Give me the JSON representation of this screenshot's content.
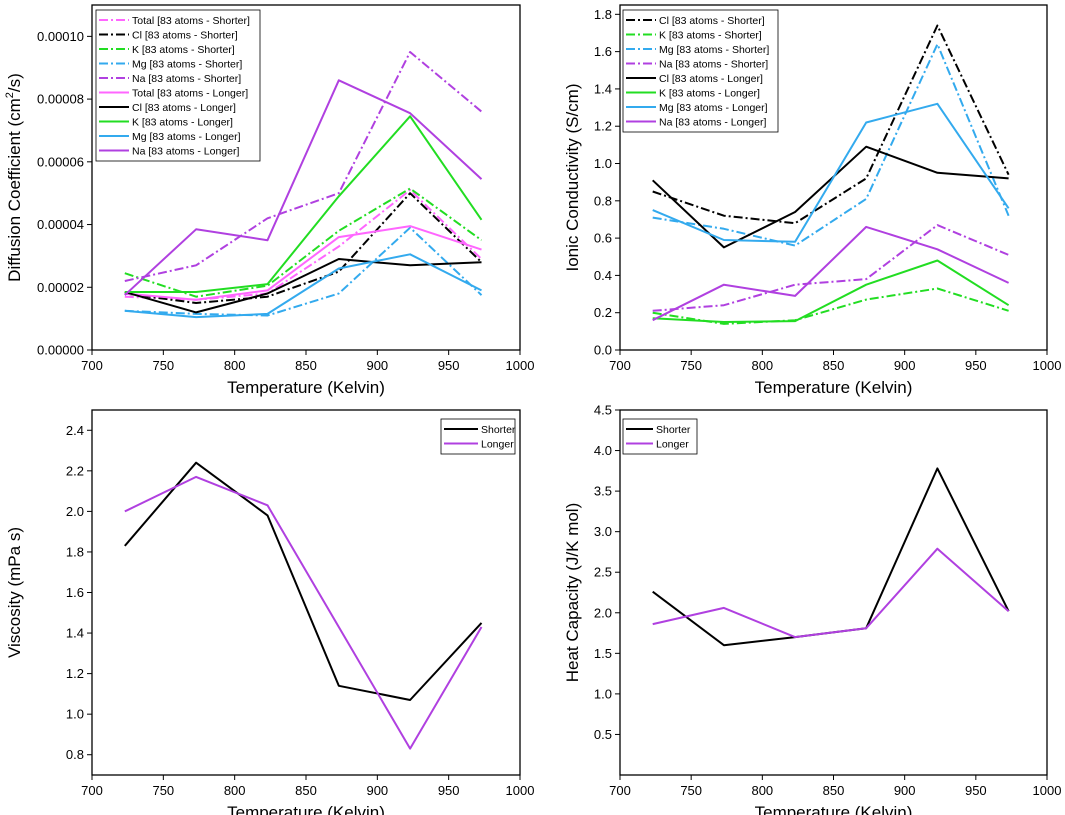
{
  "chart_data": [
    {
      "type": "line",
      "panel": "top-left",
      "xlabel": "Temperature (Kelvin)",
      "ylabel_main": "Diffusion Coefficient (cm",
      "ylabel_sup": "2",
      "ylabel_tail": "/s)",
      "xlim": [
        700,
        1000
      ],
      "ylim": [
        0,
        0.00011
      ],
      "xticks": [
        700,
        750,
        800,
        850,
        900,
        950,
        1000
      ],
      "xtick_labels": [
        "700",
        "750",
        "800",
        "850",
        "900",
        "950",
        "1000"
      ],
      "yticks": [
        0,
        2e-05,
        4e-05,
        6e-05,
        8e-05,
        0.0001
      ],
      "ytick_labels": [
        "0.00000",
        "0.00002",
        "0.00004",
        "0.00006",
        "0.00008",
        "0.00010"
      ],
      "legend_position": "top-left",
      "x": [
        723,
        773,
        823,
        873,
        923,
        973
      ],
      "series": [
        {
          "name": "Total [83 atoms - Shorter]",
          "color": "#ff66ff",
          "dash": "dashdot",
          "values": [
            1.7e-05,
            1.6e-05,
            1.8e-05,
            3.3e-05,
            5.1e-05,
            2.9e-05
          ]
        },
        {
          "name": "Cl [83 atoms - Shorter]",
          "color": "#000000",
          "dash": "dashdot",
          "values": [
            1.8e-05,
            1.5e-05,
            1.7e-05,
            2.5e-05,
            5e-05,
            2.8e-05
          ]
        },
        {
          "name": "K [83 atoms - Shorter]",
          "color": "#22dd22",
          "dash": "dashdot",
          "values": [
            2.45e-05,
            1.7e-05,
            2.05e-05,
            3.8e-05,
            5.15e-05,
            3.5e-05
          ]
        },
        {
          "name": "Mg [83 atoms - Shorter]",
          "color": "#33aaee",
          "dash": "dashdot",
          "values": [
            1.25e-05,
            1.15e-05,
            1.1e-05,
            1.8e-05,
            3.9e-05,
            1.75e-05
          ]
        },
        {
          "name": "Na [83 atoms - Shorter]",
          "color": "#b040e0",
          "dash": "dashdot",
          "values": [
            2.2e-05,
            2.7e-05,
            4.2e-05,
            5e-05,
            9.5e-05,
            7.6e-05
          ]
        },
        {
          "name": "Total [83 atoms - Longer]",
          "color": "#ff66ff",
          "dash": "solid",
          "values": [
            1.8e-05,
            1.6e-05,
            1.9e-05,
            3.6e-05,
            3.95e-05,
            3.2e-05
          ]
        },
        {
          "name": "Cl [83 atoms - Longer]",
          "color": "#000000",
          "dash": "solid",
          "values": [
            1.85e-05,
            1.2e-05,
            1.8e-05,
            2.9e-05,
            2.7e-05,
            2.8e-05
          ]
        },
        {
          "name": "K [83 atoms - Longer]",
          "color": "#22dd22",
          "dash": "solid",
          "values": [
            1.85e-05,
            1.85e-05,
            2.1e-05,
            4.9e-05,
            7.45e-05,
            4.15e-05
          ]
        },
        {
          "name": "Mg [83 atoms - Longer]",
          "color": "#33aaee",
          "dash": "solid",
          "values": [
            1.25e-05,
            1.05e-05,
            1.15e-05,
            2.6e-05,
            3.05e-05,
            1.9e-05
          ]
        },
        {
          "name": "Na [83 atoms - Longer]",
          "color": "#b040e0",
          "dash": "solid",
          "values": [
            1.75e-05,
            3.85e-05,
            3.5e-05,
            8.6e-05,
            7.55e-05,
            5.45e-05
          ]
        }
      ]
    },
    {
      "type": "line",
      "panel": "top-right",
      "xlabel": "Temperature (Kelvin)",
      "ylabel": "Ionic Conductivity (S/cm)",
      "xlim": [
        700,
        1000
      ],
      "ylim": [
        0,
        1.85
      ],
      "xticks": [
        700,
        750,
        800,
        850,
        900,
        950,
        1000
      ],
      "xtick_labels": [
        "700",
        "750",
        "800",
        "850",
        "900",
        "950",
        "1000"
      ],
      "yticks": [
        0,
        0.2,
        0.4,
        0.6,
        0.8,
        1.0,
        1.2,
        1.4,
        1.6,
        1.8
      ],
      "ytick_labels": [
        "0.0",
        "0.2",
        "0.4",
        "0.6",
        "0.8",
        "1.0",
        "1.2",
        "1.4",
        "1.6",
        "1.8"
      ],
      "legend_position": "top-left",
      "x": [
        723,
        773,
        823,
        873,
        923,
        973
      ],
      "series": [
        {
          "name": "Cl [83 atoms - Shorter]",
          "color": "#000000",
          "dash": "dashdot",
          "values": [
            0.85,
            0.72,
            0.68,
            0.92,
            1.74,
            0.94
          ]
        },
        {
          "name": "K [83 atoms - Shorter]",
          "color": "#22dd22",
          "dash": "dashdot",
          "values": [
            0.2,
            0.14,
            0.16,
            0.27,
            0.33,
            0.21
          ]
        },
        {
          "name": "Mg [83 atoms - Shorter]",
          "color": "#33aaee",
          "dash": "dashdot",
          "values": [
            0.71,
            0.65,
            0.56,
            0.81,
            1.64,
            0.72
          ]
        },
        {
          "name": "Na [83 atoms - Shorter]",
          "color": "#b040e0",
          "dash": "dashdot",
          "values": [
            0.21,
            0.24,
            0.35,
            0.38,
            0.67,
            0.51
          ]
        },
        {
          "name": "Cl [83 atoms - Longer]",
          "color": "#000000",
          "dash": "solid",
          "values": [
            0.91,
            0.55,
            0.74,
            1.09,
            0.95,
            0.92
          ]
        },
        {
          "name": "K [83 atoms - Longer]",
          "color": "#22dd22",
          "dash": "solid",
          "values": [
            0.17,
            0.15,
            0.155,
            0.35,
            0.48,
            0.24
          ]
        },
        {
          "name": "Mg [83 atoms - Longer]",
          "color": "#33aaee",
          "dash": "solid",
          "values": [
            0.75,
            0.59,
            0.58,
            1.22,
            1.32,
            0.76
          ]
        },
        {
          "name": "Na [83 atoms - Longer]",
          "color": "#b040e0",
          "dash": "solid",
          "values": [
            0.16,
            0.35,
            0.29,
            0.66,
            0.54,
            0.36
          ]
        }
      ]
    },
    {
      "type": "line",
      "panel": "bottom-left",
      "xlabel": "Temperature (Kelvin)",
      "ylabel": "Viscosity (mPa s)",
      "xlim": [
        700,
        1000
      ],
      "ylim": [
        0.7,
        2.5
      ],
      "xticks": [
        700,
        750,
        800,
        850,
        900,
        950,
        1000
      ],
      "xtick_labels": [
        "700",
        "750",
        "800",
        "850",
        "900",
        "950",
        "1000"
      ],
      "yticks": [
        0.8,
        1.0,
        1.2,
        1.4,
        1.6,
        1.8,
        2.0,
        2.2,
        2.4
      ],
      "ytick_labels": [
        "0.8",
        "1.0",
        "1.2",
        "1.4",
        "1.6",
        "1.8",
        "2.0",
        "2.2",
        "2.4"
      ],
      "legend_position": "top-right",
      "x": [
        723,
        773,
        823,
        873,
        923,
        973
      ],
      "series": [
        {
          "name": "Shorter",
          "color": "#000000",
          "dash": "solid",
          "values": [
            1.83,
            2.24,
            1.98,
            1.14,
            1.07,
            1.45
          ]
        },
        {
          "name": "Longer",
          "color": "#b040e0",
          "dash": "solid",
          "values": [
            2.0,
            2.17,
            2.03,
            1.43,
            0.83,
            1.43
          ]
        }
      ]
    },
    {
      "type": "line",
      "panel": "bottom-right",
      "xlabel": "Temperature (Kelvin)",
      "ylabel": "Heat Capacity (J/K mol)",
      "xlim": [
        700,
        1000
      ],
      "ylim": [
        0,
        4.5
      ],
      "xticks": [
        700,
        750,
        800,
        850,
        900,
        950,
        1000
      ],
      "xtick_labels": [
        "700",
        "750",
        "800",
        "850",
        "900",
        "950",
        "1000"
      ],
      "yticks": [
        0.5,
        1.0,
        1.5,
        2.0,
        2.5,
        3.0,
        3.5,
        4.0,
        4.5
      ],
      "ytick_labels": [
        "0.5",
        "1.0",
        "1.5",
        "2.0",
        "2.5",
        "3.0",
        "3.5",
        "4.0",
        "4.5"
      ],
      "legend_position": "top-left",
      "x": [
        723,
        773,
        823,
        873,
        923,
        973
      ],
      "series": [
        {
          "name": "Shorter",
          "color": "#000000",
          "dash": "solid",
          "values": [
            2.26,
            1.6,
            1.7,
            1.81,
            3.78,
            2.02
          ]
        },
        {
          "name": "Longer",
          "color": "#b040e0",
          "dash": "solid",
          "values": [
            1.86,
            2.06,
            1.7,
            1.81,
            2.79,
            2.02
          ]
        }
      ]
    }
  ]
}
